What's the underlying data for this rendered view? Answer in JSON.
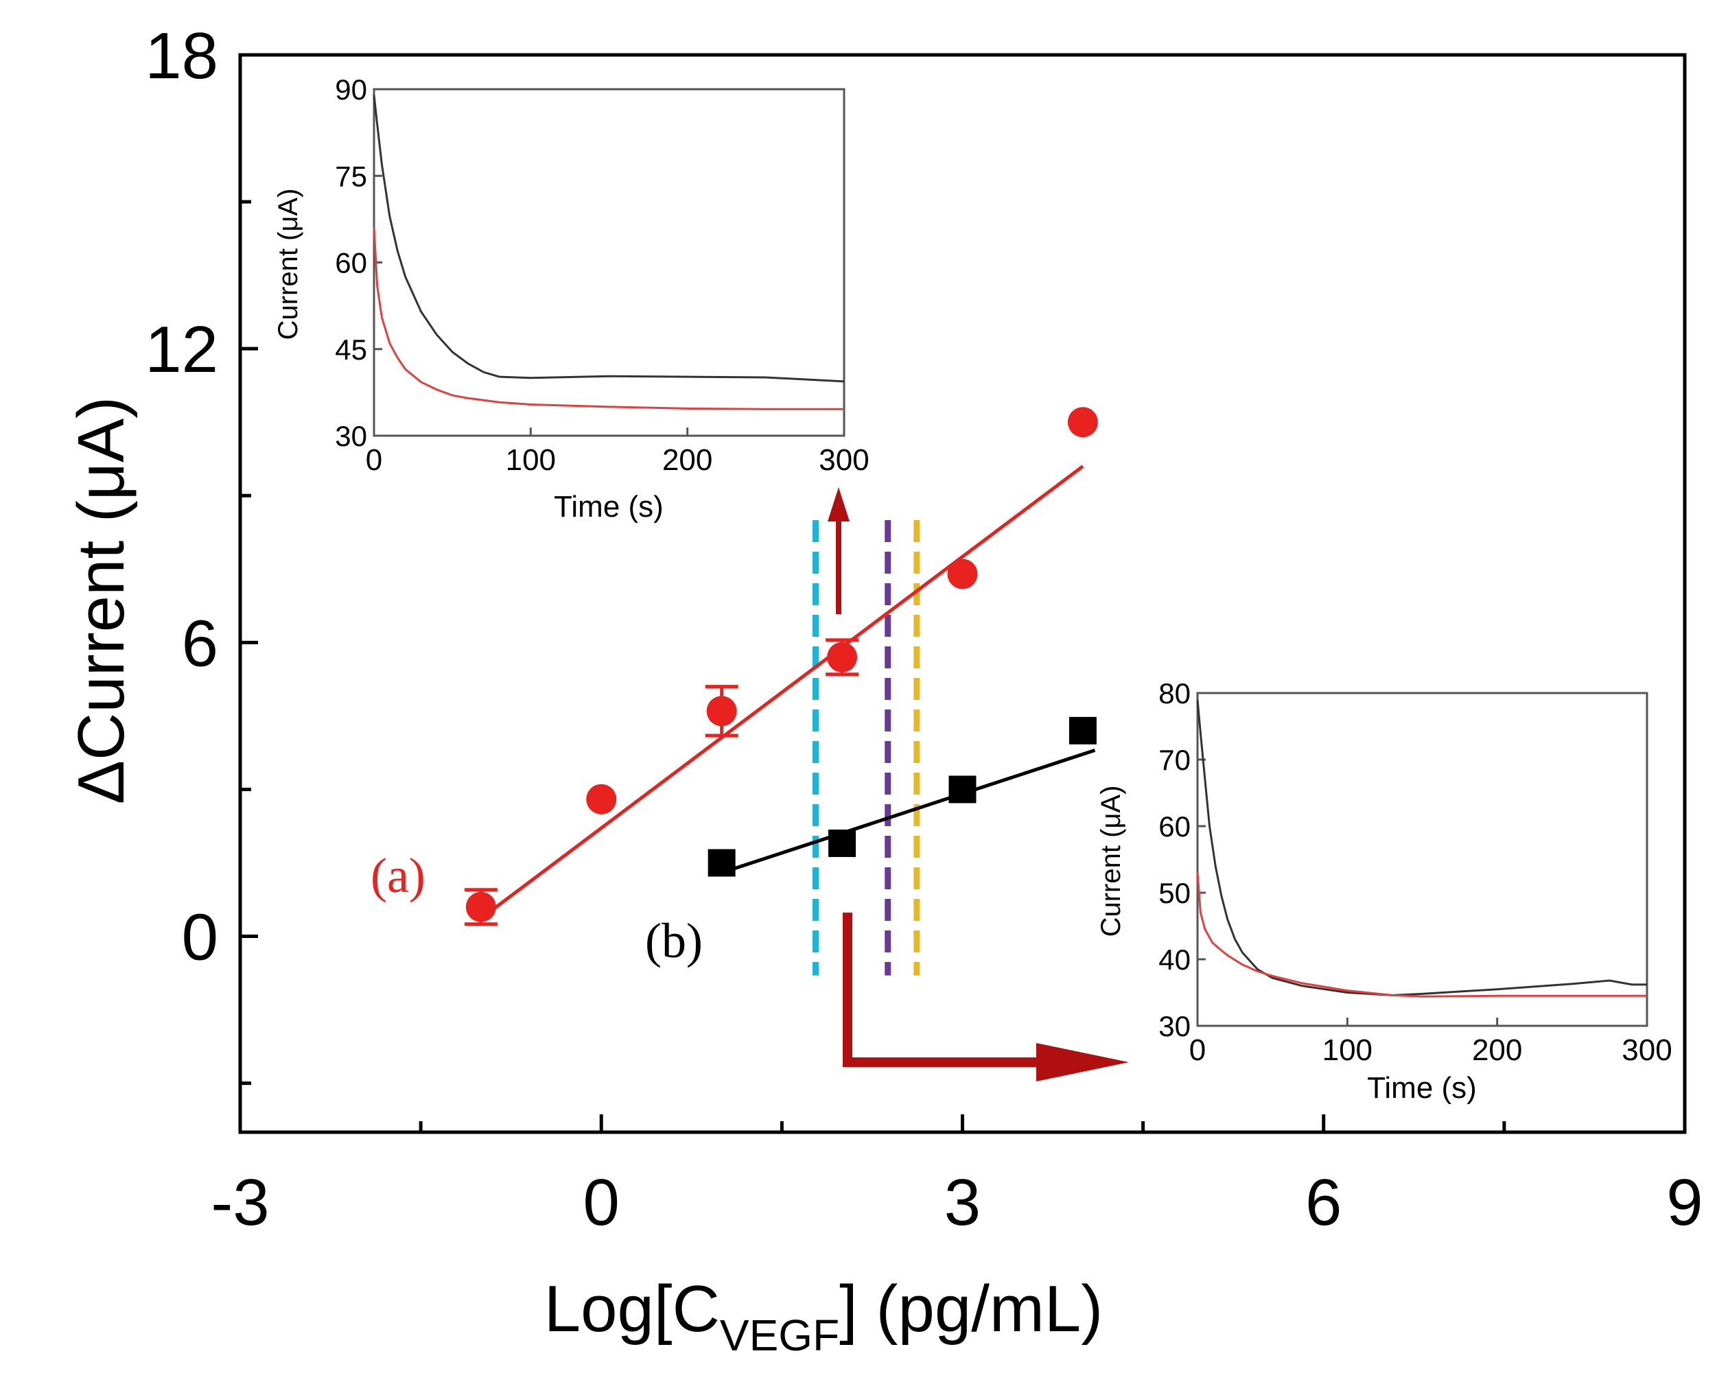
{
  "colors": {
    "red": "#e8221e",
    "black": "#000000",
    "arrow": "#b01010",
    "cyan": "#1fb4d6",
    "purple": "#6a3a9a",
    "yellow": "#e6b824",
    "inset_black": "#333333",
    "inset_red": "#e04040"
  },
  "chart_data": [
    {
      "type": "scatter",
      "role": "main",
      "xlabel_prefix": "Log[C",
      "xlabel_sub": "VEGF",
      "xlabel_suffix": "] (pg/mL)",
      "ylabel": "ΔCurrent (μA)",
      "xlim": [
        -3,
        9
      ],
      "ylim": [
        -4,
        18
      ],
      "x_ticks": [
        -3,
        0,
        3,
        6,
        9
      ],
      "y_ticks": [
        0,
        6,
        12,
        18
      ],
      "grid": false,
      "series": [
        {
          "name": "(a)",
          "color": "#e8221e",
          "marker": "circle",
          "x": [
            -1,
            0,
            1,
            2,
            3,
            4
          ],
          "y": [
            0.6,
            2.8,
            4.6,
            5.7,
            7.4,
            10.5
          ],
          "error": [
            0.35,
            0.1,
            0.5,
            0.35,
            0.1,
            0.1
          ],
          "fit": {
            "x": [
              -0.9,
              4.0
            ],
            "y": [
              0.55,
              9.6
            ]
          }
        },
        {
          "name": "(b)",
          "color": "#000000",
          "marker": "square",
          "x": [
            1,
            2,
            3,
            4
          ],
          "y": [
            1.5,
            1.9,
            3.0,
            4.2
          ],
          "error": [
            0.1,
            0.1,
            0.1,
            0.1
          ],
          "fit": {
            "x": [
              1.0,
              4.1
            ],
            "y": [
              1.3,
              3.8
            ]
          }
        }
      ],
      "vlines": [
        {
          "x": 1.78,
          "color": "#1fb4d6",
          "y_range": [
            -0.8,
            8.5
          ]
        },
        {
          "x": 2.38,
          "color": "#6a3a9a",
          "y_range": [
            -0.8,
            8.5
          ]
        },
        {
          "x": 2.62,
          "color": "#e6b824",
          "y_range": [
            -0.8,
            8.5
          ]
        }
      ]
    },
    {
      "type": "line",
      "role": "inset-top",
      "xlabel": "Time (s)",
      "ylabel": "Current (μA)",
      "xlim": [
        0,
        300
      ],
      "ylim": [
        30,
        90
      ],
      "x_ticks": [
        0,
        100,
        200,
        300
      ],
      "y_ticks": [
        30,
        45,
        60,
        75,
        90
      ],
      "series": [
        {
          "name": "black",
          "color": "#333333",
          "x": [
            0,
            2,
            5,
            10,
            15,
            20,
            30,
            40,
            50,
            60,
            70,
            80,
            100,
            150,
            200,
            250,
            300
          ],
          "y": [
            89,
            84,
            77,
            68,
            62,
            57.5,
            51.5,
            47.5,
            44.5,
            42.5,
            41,
            40.2,
            40,
            40.3,
            40.2,
            40.1,
            39.4
          ]
        },
        {
          "name": "red",
          "color": "#e04040",
          "x": [
            0,
            2,
            5,
            10,
            15,
            20,
            30,
            40,
            50,
            60,
            80,
            100,
            150,
            200,
            250,
            300
          ],
          "y": [
            66,
            56,
            50.5,
            46,
            43.5,
            41.5,
            39.3,
            38,
            37,
            36.5,
            35.8,
            35.4,
            35,
            34.7,
            34.6,
            34.6
          ]
        }
      ]
    },
    {
      "type": "line",
      "role": "inset-bottom",
      "xlabel": "Time (s)",
      "ylabel": "Current (μA)",
      "xlim": [
        0,
        300
      ],
      "ylim": [
        30,
        80
      ],
      "x_ticks": [
        0,
        100,
        200,
        300
      ],
      "y_ticks": [
        30,
        40,
        50,
        60,
        70,
        80
      ],
      "series": [
        {
          "name": "black",
          "color": "#333333",
          "x": [
            0,
            2,
            5,
            8,
            12,
            16,
            20,
            25,
            30,
            40,
            50,
            70,
            100,
            130,
            150,
            200,
            250,
            275,
            290,
            300
          ],
          "y": [
            79,
            74,
            67,
            60,
            54,
            49.5,
            46,
            43,
            41,
            38.5,
            37.2,
            36,
            35,
            34.6,
            34.8,
            35.5,
            36.3,
            36.8,
            36.2,
            36.2
          ]
        },
        {
          "name": "red",
          "color": "#e04040",
          "x": [
            0,
            2,
            5,
            10,
            15,
            20,
            30,
            40,
            50,
            70,
            100,
            130,
            150,
            200,
            250,
            300
          ],
          "y": [
            53,
            47,
            44.5,
            42.5,
            41.5,
            40.6,
            39.2,
            38.2,
            37.5,
            36.4,
            35.3,
            34.6,
            34.4,
            34.5,
            34.5,
            34.5
          ]
        }
      ]
    }
  ]
}
